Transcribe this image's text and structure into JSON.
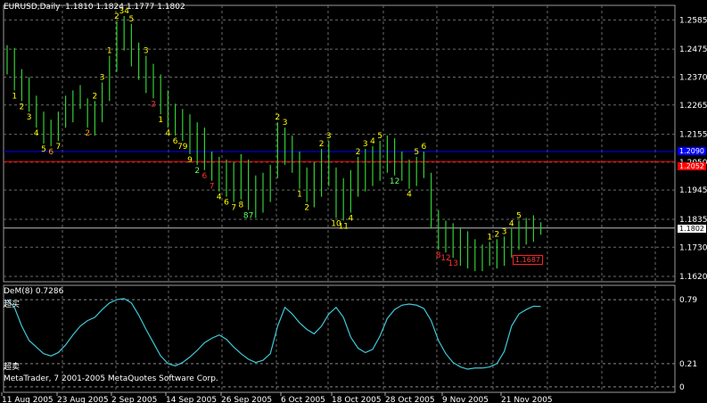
{
  "header": {
    "symbol": "EURUSD,Daily",
    "ohlc": "1.1810 1.1824 1.1777 1.1802"
  },
  "indicator": {
    "title": "DeM(8) 0.7286",
    "overbought_label": "超买",
    "oversold_label": "超卖",
    "levels": [
      "0.79",
      "0.21",
      "0"
    ]
  },
  "copyright": "MetaTrader, 7 2001-2005 MetaQuotes Software Corp.",
  "price_axis": [
    "1.2585",
    "1.2475",
    "1.2370",
    "1.2265",
    "1.2155",
    "1.2050",
    "1.1945",
    "1.1835",
    "1.1730",
    "1.1620"
  ],
  "price_tags": {
    "blue_line": "1.2090",
    "red_line": "1.2052",
    "current": "1.1802",
    "box": "1.1687"
  },
  "date_axis": [
    "11 Aug 2005",
    "23 Aug 2005",
    "2 Sep 2005",
    "14 Sep 2005",
    "26 Sep 2005",
    "6 Oct 2005",
    "18 Oct 2005",
    "28 Oct 2005",
    "9 Nov 2005",
    "21 Nov 2005"
  ],
  "colors": {
    "bars": "#32cd32",
    "blue_line": "#0000ff",
    "red_line": "#ff0000",
    "indicator": "#40c8d8",
    "grid": "#6a6a6a",
    "label_yellow": "#ffff00",
    "label_orange": "#ffa500",
    "label_green": "#66ff66",
    "label_red": "#ff3030"
  },
  "chart_data": {
    "type": "ohlc",
    "symbol": "EURUSD",
    "timeframe": "Daily",
    "bars": [
      {
        "h": 1.249,
        "l": 1.238
      },
      {
        "h": 1.248,
        "l": 1.232
      },
      {
        "h": 1.24,
        "l": 1.228
      },
      {
        "h": 1.237,
        "l": 1.224
      },
      {
        "h": 1.23,
        "l": 1.218
      },
      {
        "h": 1.224,
        "l": 1.212
      },
      {
        "h": 1.221,
        "l": 1.211
      },
      {
        "h": 1.224,
        "l": 1.213
      },
      {
        "h": 1.23,
        "l": 1.218
      },
      {
        "h": 1.232,
        "l": 1.22
      },
      {
        "h": 1.234,
        "l": 1.225
      },
      {
        "h": 1.229,
        "l": 1.218
      },
      {
        "h": 1.228,
        "l": 1.215
      },
      {
        "h": 1.235,
        "l": 1.22
      },
      {
        "h": 1.245,
        "l": 1.228
      },
      {
        "h": 1.258,
        "l": 1.239
      },
      {
        "h": 1.26,
        "l": 1.247
      },
      {
        "h": 1.257,
        "l": 1.241
      },
      {
        "h": 1.25,
        "l": 1.236
      },
      {
        "h": 1.245,
        "l": 1.231
      },
      {
        "h": 1.242,
        "l": 1.229
      },
      {
        "h": 1.238,
        "l": 1.223
      },
      {
        "h": 1.232,
        "l": 1.218
      },
      {
        "h": 1.227,
        "l": 1.215
      },
      {
        "h": 1.225,
        "l": 1.213
      },
      {
        "h": 1.223,
        "l": 1.208
      },
      {
        "h": 1.22,
        "l": 1.204
      },
      {
        "h": 1.218,
        "l": 1.202
      },
      {
        "h": 1.209,
        "l": 1.198
      },
      {
        "h": 1.207,
        "l": 1.194
      },
      {
        "h": 1.206,
        "l": 1.192
      },
      {
        "h": 1.205,
        "l": 1.19
      },
      {
        "h": 1.208,
        "l": 1.191
      },
      {
        "h": 1.206,
        "l": 1.187
      },
      {
        "h": 1.2,
        "l": 1.184
      },
      {
        "h": 1.201,
        "l": 1.186
      },
      {
        "h": 1.204,
        "l": 1.19
      },
      {
        "h": 1.22,
        "l": 1.199
      },
      {
        "h": 1.218,
        "l": 1.204
      },
      {
        "h": 1.215,
        "l": 1.201
      },
      {
        "h": 1.209,
        "l": 1.195
      },
      {
        "h": 1.203,
        "l": 1.19
      },
      {
        "h": 1.205,
        "l": 1.188
      },
      {
        "h": 1.21,
        "l": 1.192
      },
      {
        "h": 1.213,
        "l": 1.196
      },
      {
        "h": 1.203,
        "l": 1.184
      },
      {
        "h": 1.199,
        "l": 1.183
      },
      {
        "h": 1.202,
        "l": 1.186
      },
      {
        "h": 1.207,
        "l": 1.192
      },
      {
        "h": 1.21,
        "l": 1.194
      },
      {
        "h": 1.211,
        "l": 1.196
      },
      {
        "h": 1.213,
        "l": 1.198
      },
      {
        "h": 1.215,
        "l": 1.201
      },
      {
        "h": 1.214,
        "l": 1.2
      },
      {
        "h": 1.209,
        "l": 1.198
      },
      {
        "h": 1.206,
        "l": 1.195
      },
      {
        "h": 1.207,
        "l": 1.196
      },
      {
        "h": 1.209,
        "l": 1.199
      },
      {
        "h": 1.201,
        "l": 1.18
      },
      {
        "h": 1.187,
        "l": 1.172
      },
      {
        "h": 1.183,
        "l": 1.171
      },
      {
        "h": 1.182,
        "l": 1.169
      },
      {
        "h": 1.18,
        "l": 1.166
      },
      {
        "h": 1.179,
        "l": 1.165
      },
      {
        "h": 1.176,
        "l": 1.164
      },
      {
        "h": 1.174,
        "l": 1.164
      },
      {
        "h": 1.175,
        "l": 1.166
      },
      {
        "h": 1.176,
        "l": 1.165
      },
      {
        "h": 1.177,
        "l": 1.166
      },
      {
        "h": 1.18,
        "l": 1.169
      },
      {
        "h": 1.183,
        "l": 1.172
      },
      {
        "h": 1.184,
        "l": 1.174
      },
      {
        "h": 1.185,
        "l": 1.175
      },
      {
        "h": 1.1824,
        "l": 1.1777
      }
    ],
    "blue_level": 1.209,
    "red_level": 1.2052,
    "current_level": 1.1802,
    "ylim": [
      1.16,
      1.264
    ],
    "labels": [
      {
        "i": 1,
        "t": "1",
        "c": "label_yellow",
        "pos": "below"
      },
      {
        "i": 2,
        "t": "2",
        "c": "label_yellow",
        "pos": "below"
      },
      {
        "i": 3,
        "t": "3",
        "c": "label_yellow",
        "pos": "below"
      },
      {
        "i": 4,
        "t": "4",
        "c": "label_yellow",
        "pos": "below"
      },
      {
        "i": 5,
        "t": "5",
        "c": "label_yellow",
        "pos": "below"
      },
      {
        "i": 6,
        "t": "6",
        "c": "label_orange",
        "pos": "below"
      },
      {
        "i": 7,
        "t": "7",
        "c": "label_yellow",
        "pos": "below"
      },
      {
        "i": 11,
        "t": "2",
        "c": "label_orange",
        "pos": "below"
      },
      {
        "i": 12,
        "t": "2",
        "c": "label_yellow",
        "pos": "above"
      },
      {
        "i": 13,
        "t": "3",
        "c": "label_yellow",
        "pos": "above"
      },
      {
        "i": 14,
        "t": "1",
        "c": "label_yellow",
        "pos": "above"
      },
      {
        "i": 15,
        "t": "2",
        "c": "label_yellow",
        "pos": "above"
      },
      {
        "i": 16,
        "t": "34",
        "c": "label_yellow",
        "pos": "above"
      },
      {
        "i": 17,
        "t": "5",
        "c": "label_yellow",
        "pos": "above"
      },
      {
        "i": 19,
        "t": "3",
        "c": "label_yellow",
        "pos": "above"
      },
      {
        "i": 20,
        "t": "2",
        "c": "label_red",
        "pos": "below"
      },
      {
        "i": 21,
        "t": "1",
        "c": "label_yellow",
        "pos": "below"
      },
      {
        "i": 22,
        "t": "4",
        "c": "label_yellow",
        "pos": "below"
      },
      {
        "i": 23,
        "t": "6",
        "c": "label_yellow",
        "pos": "below"
      },
      {
        "i": 24,
        "t": "79",
        "c": "label_yellow",
        "pos": "below"
      },
      {
        "i": 25,
        "t": "9",
        "c": "label_yellow",
        "pos": "below"
      },
      {
        "i": 26,
        "t": "2",
        "c": "label_green",
        "pos": "below"
      },
      {
        "i": 27,
        "t": "6",
        "c": "label_red",
        "pos": "below"
      },
      {
        "i": 28,
        "t": "7",
        "c": "label_red",
        "pos": "below"
      },
      {
        "i": 29,
        "t": "4",
        "c": "label_yellow",
        "pos": "below"
      },
      {
        "i": 30,
        "t": "6",
        "c": "label_yellow",
        "pos": "below"
      },
      {
        "i": 31,
        "t": "7",
        "c": "label_yellow",
        "pos": "below"
      },
      {
        "i": 32,
        "t": "8",
        "c": "label_yellow",
        "pos": "below"
      },
      {
        "i": 33,
        "t": "87",
        "c": "label_green",
        "pos": "below"
      },
      {
        "i": 37,
        "t": "2",
        "c": "label_yellow",
        "pos": "above"
      },
      {
        "i": 38,
        "t": "3",
        "c": "label_yellow",
        "pos": "above"
      },
      {
        "i": 40,
        "t": "1",
        "c": "label_yellow",
        "pos": "below"
      },
      {
        "i": 41,
        "t": "2",
        "c": "label_yellow",
        "pos": "below"
      },
      {
        "i": 43,
        "t": "2",
        "c": "label_yellow",
        "pos": "above"
      },
      {
        "i": 44,
        "t": "3",
        "c": "label_yellow",
        "pos": "above"
      },
      {
        "i": 45,
        "t": "10",
        "c": "label_yellow",
        "pos": "below"
      },
      {
        "i": 46,
        "t": "11",
        "c": "label_yellow",
        "pos": "below"
      },
      {
        "i": 47,
        "t": "4",
        "c": "label_yellow",
        "pos": "below"
      },
      {
        "i": 48,
        "t": "2",
        "c": "label_yellow",
        "pos": "above"
      },
      {
        "i": 49,
        "t": "3",
        "c": "label_yellow",
        "pos": "above"
      },
      {
        "i": 50,
        "t": "4",
        "c": "label_yellow",
        "pos": "above"
      },
      {
        "i": 51,
        "t": "5",
        "c": "label_yellow",
        "pos": "above"
      },
      {
        "i": 53,
        "t": "12",
        "c": "label_green",
        "pos": "below"
      },
      {
        "i": 55,
        "t": "4",
        "c": "label_yellow",
        "pos": "below"
      },
      {
        "i": 56,
        "t": "5",
        "c": "label_yellow",
        "pos": "above"
      },
      {
        "i": 57,
        "t": "6",
        "c": "label_yellow",
        "pos": "above"
      },
      {
        "i": 59,
        "t": "8",
        "c": "label_red",
        "pos": "below"
      },
      {
        "i": 60,
        "t": "12",
        "c": "label_red",
        "pos": "below"
      },
      {
        "i": 61,
        "t": "13",
        "c": "label_red",
        "pos": "below"
      },
      {
        "i": 66,
        "t": "1",
        "c": "label_yellow",
        "pos": "above"
      },
      {
        "i": 67,
        "t": "2",
        "c": "label_yellow",
        "pos": "above"
      },
      {
        "i": 68,
        "t": "3",
        "c": "label_yellow",
        "pos": "above"
      },
      {
        "i": 69,
        "t": "4",
        "c": "label_yellow",
        "pos": "above"
      },
      {
        "i": 70,
        "t": "5",
        "c": "label_yellow",
        "pos": "above"
      }
    ],
    "dem_series": [
      0.79,
      0.72,
      0.55,
      0.42,
      0.36,
      0.3,
      0.28,
      0.31,
      0.38,
      0.47,
      0.55,
      0.6,
      0.63,
      0.7,
      0.76,
      0.79,
      0.8,
      0.76,
      0.65,
      0.52,
      0.4,
      0.28,
      0.21,
      0.19,
      0.22,
      0.27,
      0.33,
      0.4,
      0.44,
      0.47,
      0.43,
      0.36,
      0.3,
      0.25,
      0.22,
      0.24,
      0.3,
      0.55,
      0.72,
      0.66,
      0.58,
      0.52,
      0.48,
      0.55,
      0.66,
      0.72,
      0.63,
      0.45,
      0.35,
      0.31,
      0.34,
      0.46,
      0.62,
      0.7,
      0.74,
      0.75,
      0.74,
      0.71,
      0.6,
      0.42,
      0.3,
      0.22,
      0.18,
      0.16,
      0.17,
      0.17,
      0.18,
      0.21,
      0.32,
      0.55,
      0.66,
      0.7,
      0.73,
      0.7286
    ],
    "dem_levels": [
      0.79,
      0.21,
      0
    ],
    "dem_ylim": [
      -0.05,
      0.92
    ]
  }
}
